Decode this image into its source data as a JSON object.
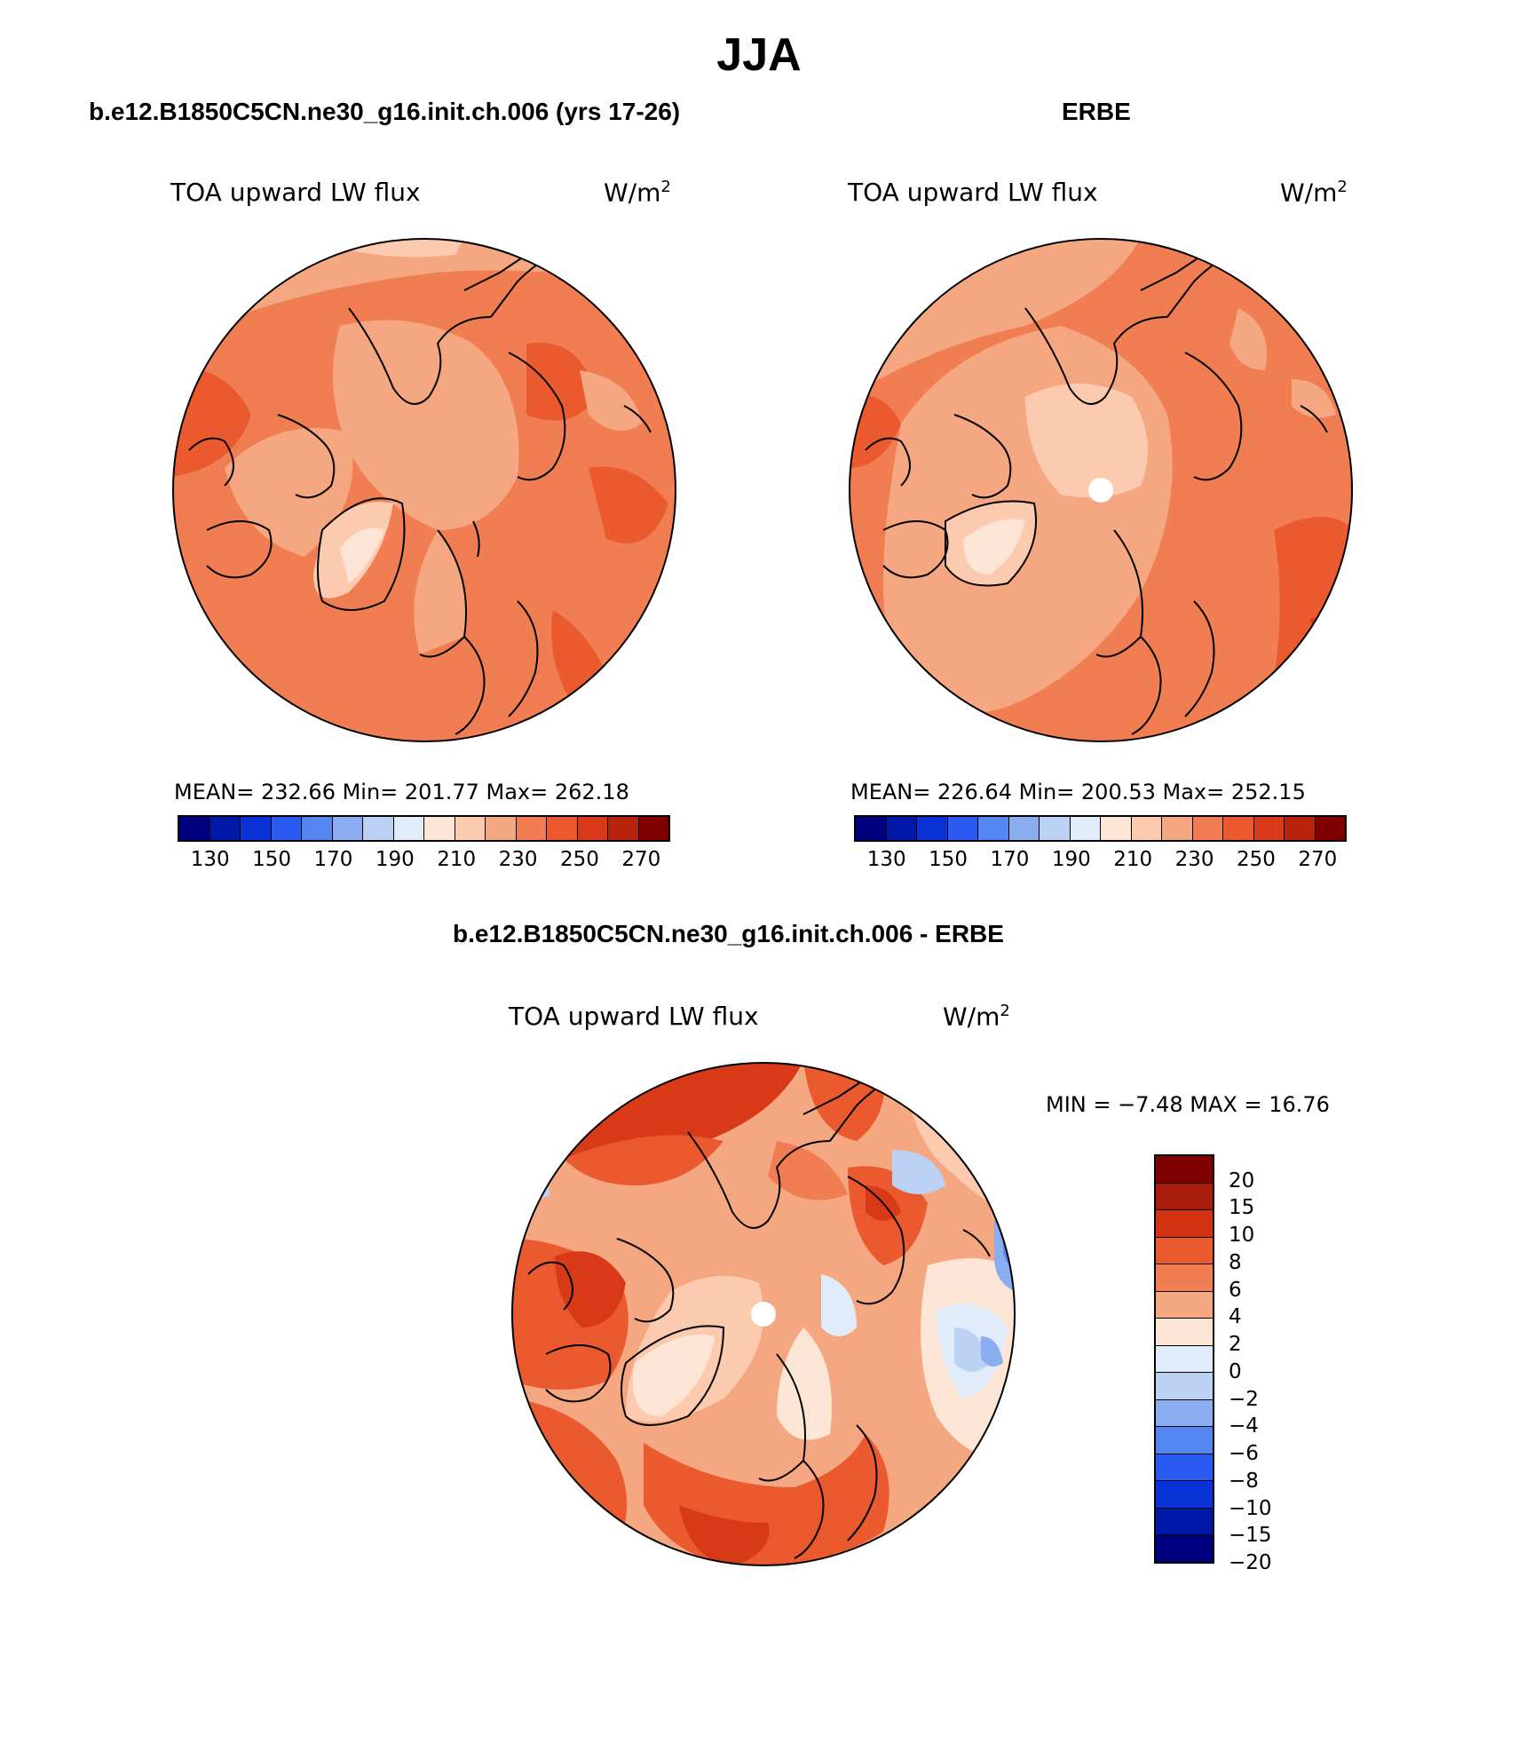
{
  "title": "JJA",
  "panels": [
    {
      "subtitle": "b.e12.B1850C5CN.ne30_g16.init.ch.006 (yrs 17-26)",
      "var_label": "TOA upward LW flux",
      "units_base": "W/m",
      "units_exp": "2",
      "stats": "MEAN= 232.66   Min= 201.77   Max= 262.18"
    },
    {
      "subtitle": "ERBE",
      "var_label": "TOA upward LW flux",
      "units_base": "W/m",
      "units_exp": "2",
      "stats": "MEAN= 226.64   Min= 200.53   Max= 252.15"
    },
    {
      "subtitle": "b.e12.B1850C5CN.ne30_g16.init.ch.006 - ERBE",
      "var_label": "TOA upward LW flux",
      "units_base": "W/m",
      "units_exp": "2",
      "stats": "MIN =   −7.48  MAX =    16.76"
    }
  ],
  "abs_colorbar": {
    "colors": [
      "#00007f",
      "#0018a8",
      "#0a32d6",
      "#2a5af2",
      "#5585f0",
      "#8aadf2",
      "#bcd2f5",
      "#e1ecfa",
      "#fde5d6",
      "#fbcaaf",
      "#f5a781",
      "#f07e52",
      "#ea5a2e",
      "#d83a17",
      "#b8230c",
      "#800000"
    ],
    "tick_labels": [
      "130",
      "150",
      "170",
      "190",
      "210",
      "230",
      "250",
      "270"
    ]
  },
  "diff_colorbar": {
    "colors": [
      "#800000",
      "#a81c0c",
      "#d23212",
      "#ea5a2e",
      "#f07e52",
      "#f5a781",
      "#fde5d6",
      "#e1ecfa",
      "#bcd2f5",
      "#8aadf2",
      "#5585f0",
      "#2a5af2",
      "#0a32d6",
      "#0018a8",
      "#00007f"
    ],
    "tick_labels": [
      "20",
      "15",
      "10",
      "8",
      "6",
      "4",
      "2",
      "0",
      "−2",
      "−4",
      "−6",
      "−8",
      "−10",
      "−15",
      "−20"
    ]
  }
}
